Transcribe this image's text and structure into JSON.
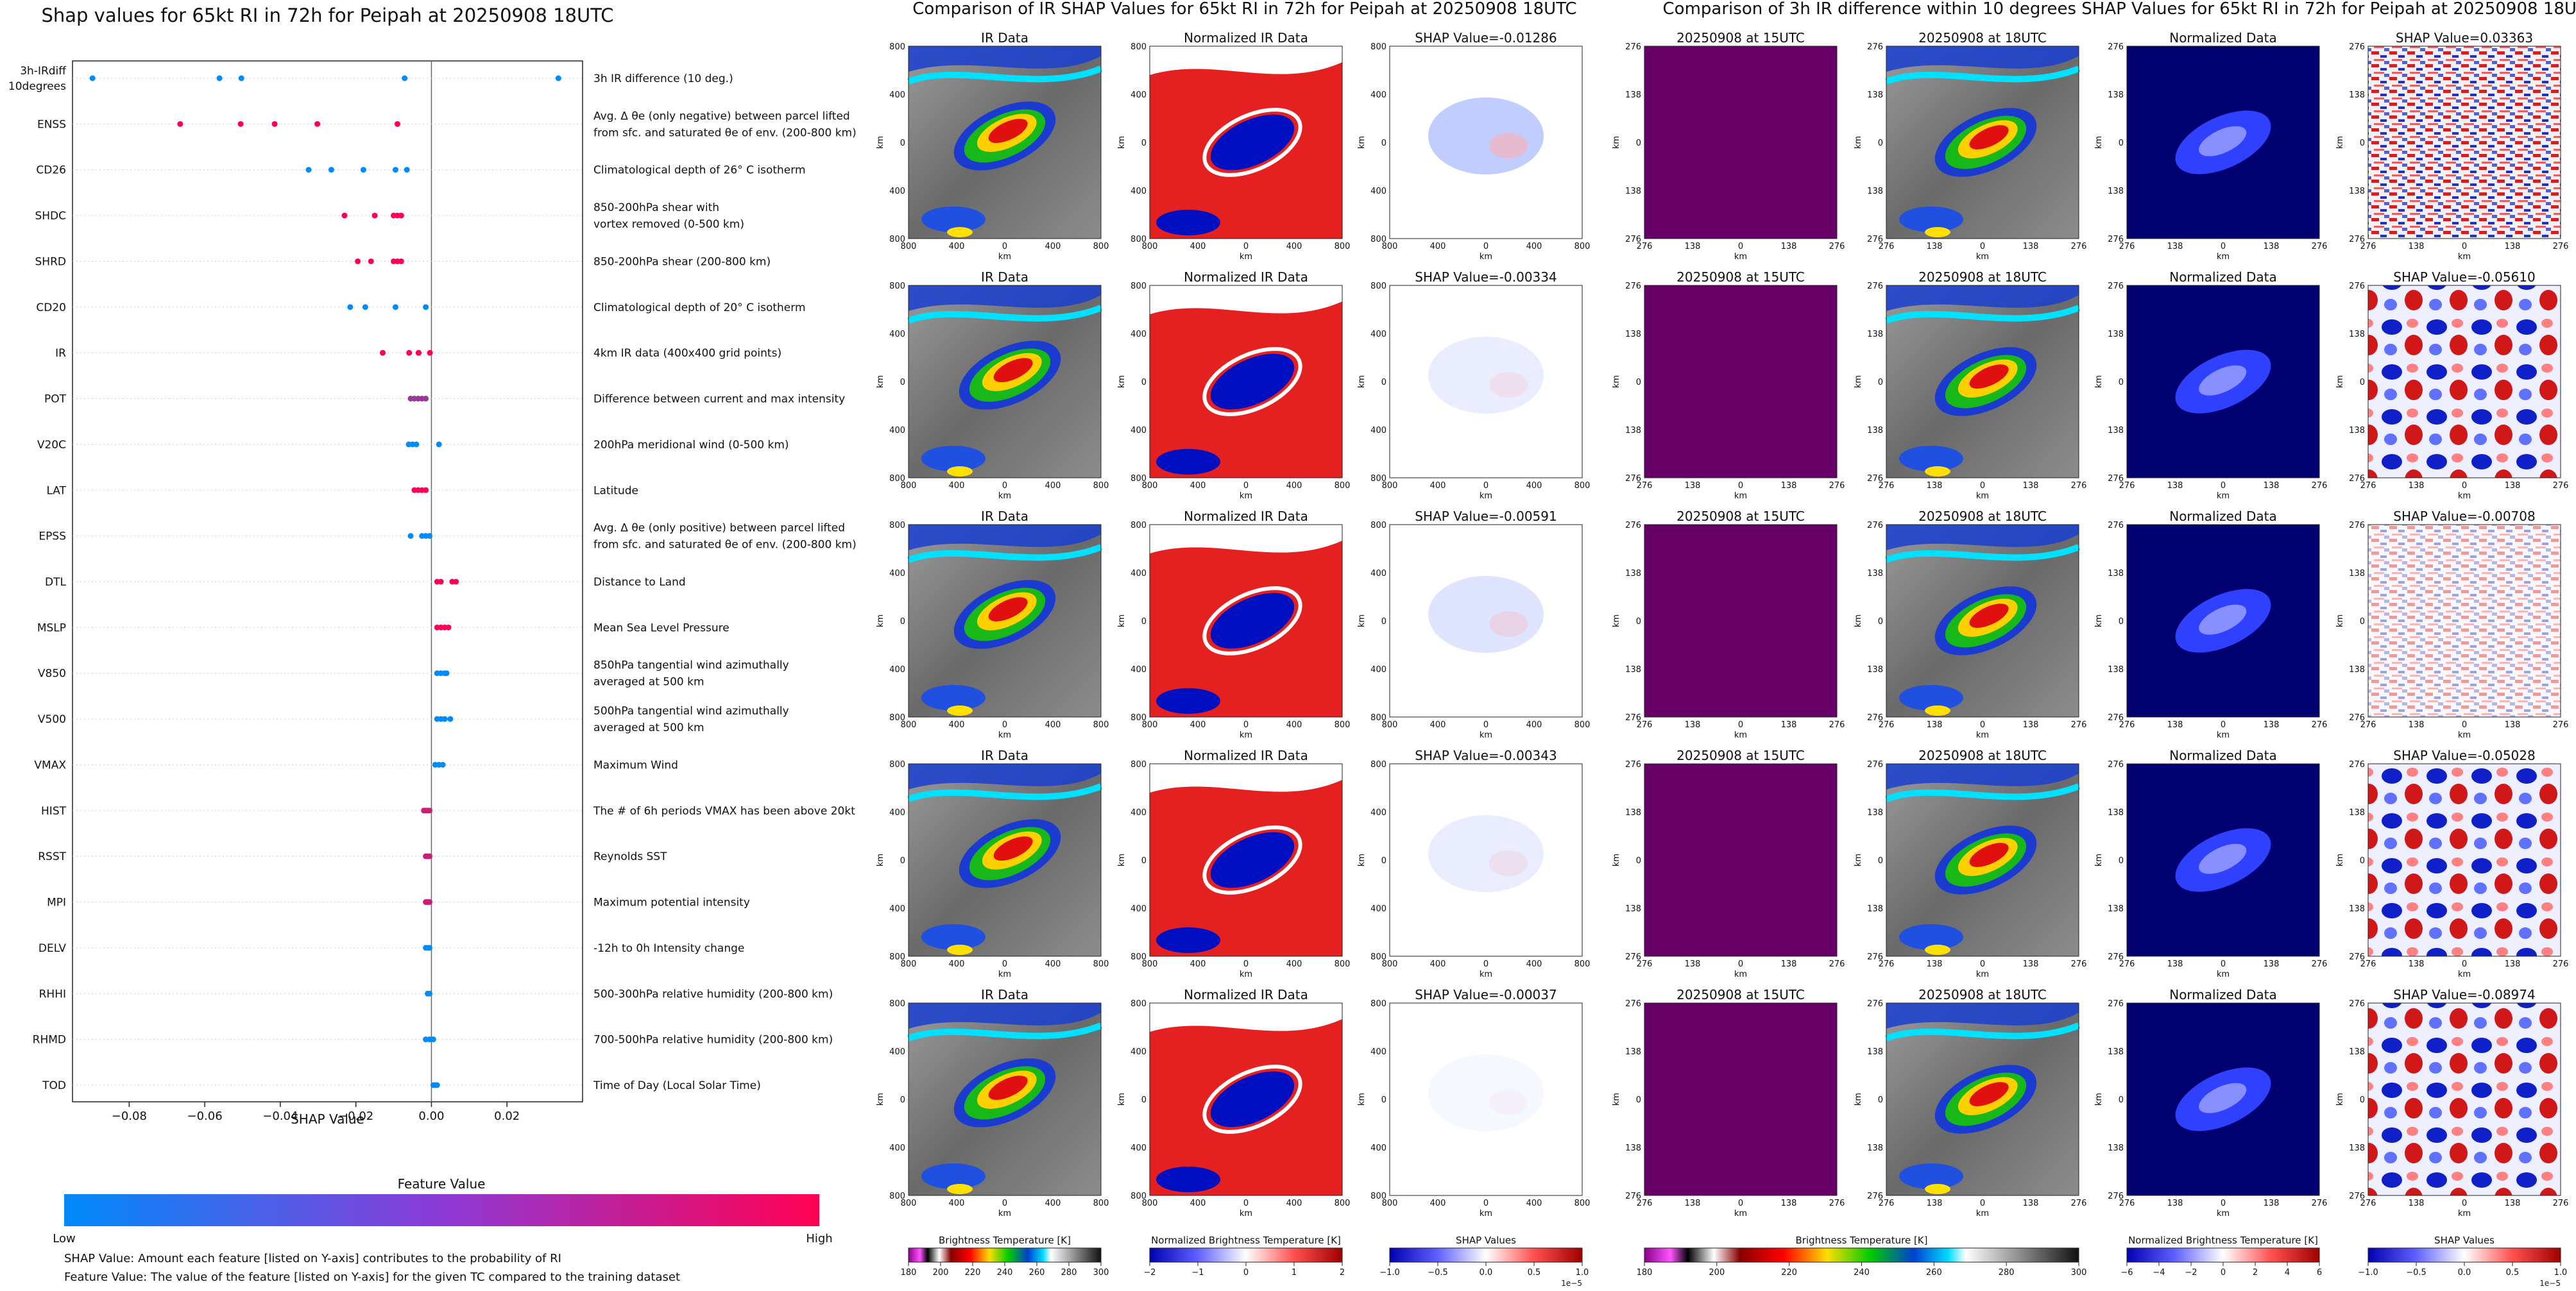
{
  "left_panel": {
    "title": "Shap values for 65kt RI in 72h for Peipah at 20250908 18UTC",
    "xlabel": "SHAP Value",
    "colorbar_title": "Feature Value",
    "colorbar_low": "Low",
    "colorbar_high": "High",
    "footnote1": "SHAP Value: Amount each feature [listed on Y-axis] contributes to the probability of RI",
    "footnote2": "Feature Value: The value of the feature [listed on Y-axis] for the given TC compared to the training dataset"
  },
  "middle_panel": {
    "title": "Comparison of IR SHAP Values for 65kt RI in 72h for Peipah at 20250908 18UTC",
    "col_titles": [
      "IR Data",
      "Normalized IR Data"
    ],
    "shap_titles": [
      "SHAP Value=-0.01286",
      "SHAP Value=-0.00334",
      "SHAP Value=-0.00591",
      "SHAP Value=-0.00343",
      "SHAP Value=-0.00037"
    ],
    "axis_label": "km",
    "ticks": [
      "800",
      "400",
      "0",
      "400",
      "800"
    ],
    "cb_labels": [
      "Brightness Temperature [K]",
      "Normalized Brightness Temperature [K]",
      "SHAP Values"
    ],
    "cb1_ticks": [
      "180",
      "200",
      "220",
      "240",
      "260",
      "280",
      "300"
    ],
    "cb2_ticks": [
      "−2",
      "−1",
      "0",
      "1",
      "2"
    ],
    "cb3_ticks": [
      "−1.0",
      "−0.5",
      "0.0",
      "0.5",
      "1.0"
    ],
    "cb3_exp": "1e−5"
  },
  "right_panel": {
    "title": "Comparison of 3h IR difference within 10 degrees SHAP Values for 65kt RI in 72h for Peipah at 20250908 18UTC",
    "col_titles": [
      "20250908 at 15UTC",
      "20250908 at 18UTC",
      "Normalized Data"
    ],
    "shap_titles": [
      "SHAP Value=0.03363",
      "SHAP Value=-0.05610",
      "SHAP Value=-0.00708",
      "SHAP Value=-0.05028",
      "SHAP Value=-0.08974"
    ],
    "axis_label": "km",
    "ticks": [
      "276",
      "138",
      "0",
      "138",
      "276"
    ],
    "cb_labels": [
      "Brightness Temperature [K]",
      "Normalized Brightness Temperature [K]",
      "SHAP Values"
    ],
    "cb1_ticks": [
      "180",
      "200",
      "220",
      "240",
      "260",
      "280",
      "300"
    ],
    "cb2_ticks": [
      "−6",
      "−4",
      "−2",
      "0",
      "2",
      "4",
      "6"
    ],
    "cb3_ticks": [
      "−1.0",
      "−0.5",
      "0.0",
      "0.5",
      "1.0"
    ],
    "cb3_exp": "1e−5"
  },
  "colors": {
    "shap_low": "#008bfb",
    "shap_high": "#ff0052",
    "purple": "#660066"
  },
  "chart_data": [
    {
      "type": "scatter",
      "title": "Shap values for 65kt RI in 72h for Peipah at 20250908 18UTC",
      "xlabel": "SHAP Value",
      "xlim": [
        -0.095,
        0.04
      ],
      "xticks": [
        -0.08,
        -0.06,
        -0.04,
        -0.02,
        0.0,
        0.02
      ],
      "xtick_labels": [
        "−0.08",
        "−0.06",
        "−0.04",
        "−0.02",
        "0.00",
        "0.02"
      ],
      "features": [
        {
          "code": "3h-IRdiff\n10degrees",
          "desc": "3h IR difference (10 deg.)",
          "points": [
            [
              -0.0897,
              0
            ],
            [
              -0.0561,
              0
            ],
            [
              -0.0503,
              0
            ],
            [
              -0.0071,
              0
            ],
            [
              0.0336,
              0
            ]
          ]
        },
        {
          "code": "ENSS",
          "desc": "Avg. Δ θe (only negative) between parcel lifted\nfrom sfc. and saturated θe of env. (200-800 km)",
          "points": [
            [
              -0.0665,
              1
            ],
            [
              -0.0505,
              1
            ],
            [
              -0.0415,
              1
            ],
            [
              -0.0302,
              1
            ],
            [
              -0.009,
              1
            ]
          ]
        },
        {
          "code": "CD26",
          "desc": "Climatological depth of 26° C isotherm",
          "points": [
            [
              -0.0325,
              0
            ],
            [
              -0.0265,
              0
            ],
            [
              -0.018,
              0
            ],
            [
              -0.0095,
              0
            ],
            [
              -0.0065,
              0
            ]
          ]
        },
        {
          "code": "SHDC",
          "desc": "850-200hPa shear with\nvortex removed (0-500 km)",
          "points": [
            [
              -0.023,
              1
            ],
            [
              -0.015,
              1
            ],
            [
              -0.01,
              1
            ],
            [
              -0.009,
              1
            ],
            [
              -0.008,
              1
            ]
          ]
        },
        {
          "code": "SHRD",
          "desc": "850-200hPa shear (200-800 km)",
          "points": [
            [
              -0.0195,
              1
            ],
            [
              -0.016,
              1
            ],
            [
              -0.01,
              1
            ],
            [
              -0.009,
              1
            ],
            [
              -0.008,
              1
            ]
          ]
        },
        {
          "code": "CD20",
          "desc": "Climatological depth of 20° C isotherm",
          "points": [
            [
              -0.0215,
              0
            ],
            [
              -0.0175,
              0
            ],
            [
              -0.0095,
              0
            ],
            [
              -0.0015,
              0
            ]
          ]
        },
        {
          "code": "IR",
          "desc": "4km IR data (400x400 grid points)",
          "points": [
            [
              -0.0129,
              1
            ],
            [
              -0.0059,
              1
            ],
            [
              -0.0034,
              1
            ],
            [
              -0.0034,
              1
            ],
            [
              -0.0004,
              1
            ]
          ]
        },
        {
          "code": "POT",
          "desc": "Difference between current and max intensity",
          "points": [
            [
              -0.0055,
              0.6
            ],
            [
              -0.0045,
              0.6
            ],
            [
              -0.0035,
              0.6
            ],
            [
              -0.0025,
              0.6
            ],
            [
              -0.0015,
              0.6
            ]
          ]
        },
        {
          "code": "V20C",
          "desc": "200hPa meridional wind (0-500 km)",
          "points": [
            [
              -0.006,
              0
            ],
            [
              -0.005,
              0
            ],
            [
              -0.004,
              0
            ],
            [
              0.002,
              0
            ]
          ]
        },
        {
          "code": "LAT",
          "desc": "Latitude",
          "points": [
            [
              -0.0045,
              1
            ],
            [
              -0.0035,
              1
            ],
            [
              -0.0025,
              1
            ],
            [
              -0.0015,
              1
            ]
          ]
        },
        {
          "code": "EPSS",
          "desc": "Avg. Δ θe (only positive) between parcel lifted\nfrom sfc. and saturated θe of env. (200-800 km)",
          "points": [
            [
              -0.0055,
              0
            ],
            [
              -0.0025,
              0
            ],
            [
              -0.0015,
              0
            ],
            [
              -0.0005,
              0
            ]
          ]
        },
        {
          "code": "DTL",
          "desc": "Distance to Land",
          "points": [
            [
              0.0015,
              1
            ],
            [
              0.0025,
              1
            ],
            [
              0.0055,
              1
            ],
            [
              0.0065,
              1
            ]
          ]
        },
        {
          "code": "MSLP",
          "desc": "Mean Sea Level Pressure",
          "points": [
            [
              0.0015,
              1
            ],
            [
              0.0025,
              1
            ],
            [
              0.0035,
              1
            ],
            [
              0.0045,
              1
            ]
          ]
        },
        {
          "code": "V850",
          "desc": "850hPa tangential wind azimuthally\naveraged at 500 km",
          "points": [
            [
              0.0015,
              0
            ],
            [
              0.0025,
              0
            ],
            [
              0.0035,
              0
            ],
            [
              0.004,
              0
            ]
          ]
        },
        {
          "code": "V500",
          "desc": "500hPa tangential wind azimuthally\naveraged at 500 km",
          "points": [
            [
              0.0015,
              0
            ],
            [
              0.0025,
              0
            ],
            [
              0.0035,
              0
            ],
            [
              0.005,
              0
            ]
          ]
        },
        {
          "code": "VMAX",
          "desc": "Maximum Wind",
          "points": [
            [
              0.001,
              0
            ],
            [
              0.002,
              0
            ],
            [
              0.003,
              0
            ]
          ]
        },
        {
          "code": "HIST",
          "desc": "The # of 6h periods VMAX has been above 20kt",
          "points": [
            [
              -0.002,
              0.8
            ],
            [
              -0.0015,
              0.8
            ],
            [
              -0.001,
              0.8
            ],
            [
              -0.0005,
              0.8
            ]
          ]
        },
        {
          "code": "RSST",
          "desc": "Reynolds SST",
          "points": [
            [
              -0.0015,
              0.8
            ],
            [
              -0.001,
              0.8
            ],
            [
              -0.0005,
              0.8
            ]
          ]
        },
        {
          "code": "MPI",
          "desc": "Maximum potential intensity",
          "points": [
            [
              -0.0015,
              0.8
            ],
            [
              -0.001,
              0.8
            ],
            [
              -0.0005,
              0.8
            ]
          ]
        },
        {
          "code": "DELV",
          "desc": "-12h to 0h Intensity change",
          "points": [
            [
              -0.0015,
              0
            ],
            [
              -0.001,
              0
            ],
            [
              -0.0005,
              0
            ]
          ]
        },
        {
          "code": "RHHI",
          "desc": "500-300hPa relative humidity (200-800 km)",
          "points": [
            [
              -0.001,
              0
            ],
            [
              -0.0005,
              0
            ]
          ]
        },
        {
          "code": "RHMD",
          "desc": "700-500hPa relative humidity (200-800 km)",
          "points": [
            [
              -0.0015,
              0
            ],
            [
              -0.0005,
              0
            ],
            [
              0.0005,
              0
            ]
          ]
        },
        {
          "code": "TOD",
          "desc": "Time of Day (Local Solar Time)",
          "points": [
            [
              0.0005,
              0
            ],
            [
              0.001,
              0
            ],
            [
              0.0015,
              0
            ]
          ]
        }
      ]
    },
    {
      "type": "heatmap",
      "title": "Comparison of IR SHAP Values for 65kt RI in 72h for Peipah at 20250908 18UTC",
      "shap_values": [
        -0.01286,
        -0.00334,
        -0.00591,
        -0.00343,
        -0.00037
      ]
    },
    {
      "type": "heatmap",
      "title": "Comparison of 3h IR difference within 10 degrees SHAP Values for 65kt RI in 72h for Peipah at 20250908 18UTC",
      "shap_values": [
        0.03363,
        -0.0561,
        -0.00708,
        -0.05028,
        -0.08974
      ]
    }
  ]
}
